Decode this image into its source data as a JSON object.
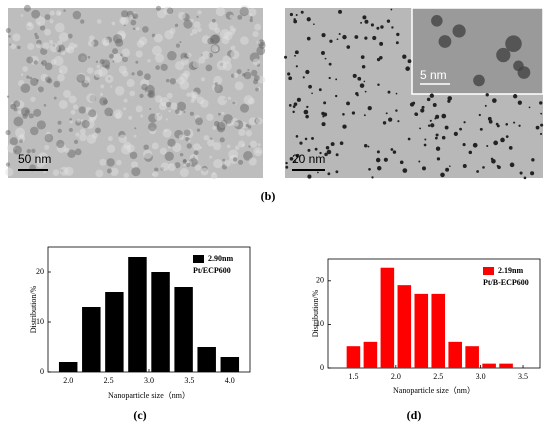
{
  "images": [
    {
      "scale_bar": "50 nm"
    },
    {
      "scale_bar": "20 nm"
    },
    {
      "scale_bar": "5 nm"
    }
  ],
  "captions": [
    "(b)",
    "(c)",
    "(d)"
  ],
  "chart_data": [
    {
      "type": "histogram",
      "bins": [
        1.857,
        2.143,
        2.429,
        2.714,
        3.0,
        3.286,
        3.571,
        3.857,
        4.143
      ],
      "series": [
        {
          "name": "2.90nm",
          "color": "#000000",
          "values": [
            2,
            13,
            16,
            23,
            20,
            17,
            5,
            3
          ]
        }
      ],
      "annotation": "Pt/ECP600",
      "xlabel": "Nanoparticle size（nm）",
      "ylabel": "Distribution/%",
      "xlim": [
        1.75,
        4.25
      ],
      "xticks": [
        {
          "value": 2,
          "label": "2.0"
        },
        2.5,
        {
          "value": 3,
          "label": "3.0"
        },
        3.5,
        {
          "value": 4,
          "label": "4.0"
        }
      ],
      "ylim": [
        0,
        25
      ],
      "yticks": [
        0,
        10,
        20
      ],
      "legend": "upper right"
    },
    {
      "type": "histogram",
      "bins": [
        1.4,
        1.6,
        1.8,
        2.0,
        2.2,
        2.4,
        2.6,
        2.8,
        3.0,
        3.2,
        3.4
      ],
      "series": [
        {
          "name": "2.19nm",
          "color": "#ff0000",
          "values": [
            5,
            6,
            23,
            19,
            17,
            17,
            6,
            5,
            1,
            1
          ]
        }
      ],
      "annotation": "Pt/B-ECP600",
      "xlabel": "Nanoparticle size（nm）",
      "ylabel": "Distribution/%",
      "xlim": [
        1.2,
        3.7
      ],
      "xticks": [
        1.5,
        {
          "value": 2,
          "label": "2.0"
        },
        2.5,
        {
          "value": 3,
          "label": "3.0"
        },
        3.5
      ],
      "ylim": [
        0,
        25
      ],
      "yticks": [
        0,
        10,
        20
      ],
      "legend": "upper right"
    }
  ]
}
